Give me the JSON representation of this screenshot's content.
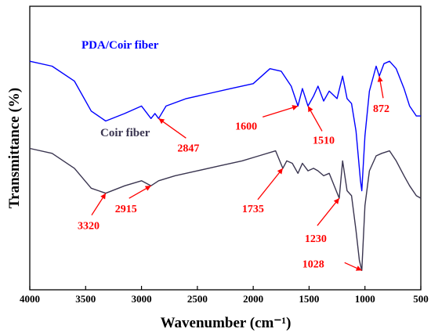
{
  "chart_data": {
    "type": "line",
    "title": "",
    "xlabel": "Wavenumber (cm⁻¹)",
    "ylabel": "Transmittance (%)",
    "xlim": [
      4000,
      500
    ],
    "x_reversed": true,
    "y_ticks_shown": false,
    "grid": false,
    "xticks": [
      4000,
      3500,
      3000,
      2500,
      2000,
      1500,
      1000,
      500
    ],
    "ylim": [
      0,
      100
    ],
    "series": [
      {
        "name": "PDA/Coir fiber",
        "color": "#0000ff",
        "points": [
          [
            4000,
            88
          ],
          [
            3800,
            86
          ],
          [
            3600,
            80
          ],
          [
            3450,
            68
          ],
          [
            3320,
            64
          ],
          [
            3150,
            67
          ],
          [
            3000,
            70
          ],
          [
            2915,
            65
          ],
          [
            2880,
            67
          ],
          [
            2847,
            65
          ],
          [
            2780,
            70
          ],
          [
            2600,
            73
          ],
          [
            2400,
            75
          ],
          [
            2200,
            77
          ],
          [
            2000,
            79
          ],
          [
            1850,
            85
          ],
          [
            1750,
            84
          ],
          [
            1660,
            78
          ],
          [
            1600,
            70
          ],
          [
            1560,
            77
          ],
          [
            1510,
            70
          ],
          [
            1460,
            74
          ],
          [
            1420,
            78
          ],
          [
            1370,
            72
          ],
          [
            1320,
            76
          ],
          [
            1250,
            73
          ],
          [
            1200,
            82
          ],
          [
            1160,
            73
          ],
          [
            1120,
            71
          ],
          [
            1080,
            60
          ],
          [
            1040,
            40
          ],
          [
            1028,
            36
          ],
          [
            1000,
            58
          ],
          [
            960,
            76
          ],
          [
            900,
            86
          ],
          [
            872,
            82
          ],
          [
            830,
            87
          ],
          [
            780,
            88
          ],
          [
            720,
            85
          ],
          [
            650,
            77
          ],
          [
            600,
            70
          ],
          [
            540,
            66
          ],
          [
            500,
            66
          ]
        ]
      },
      {
        "name": "Coir fiber",
        "color": "#3a3550",
        "points": [
          [
            4000,
            53
          ],
          [
            3800,
            51
          ],
          [
            3600,
            45
          ],
          [
            3450,
            37
          ],
          [
            3320,
            35
          ],
          [
            3150,
            38
          ],
          [
            3000,
            40
          ],
          [
            2915,
            38
          ],
          [
            2847,
            40
          ],
          [
            2700,
            42
          ],
          [
            2500,
            44
          ],
          [
            2300,
            46
          ],
          [
            2100,
            48
          ],
          [
            1950,
            50
          ],
          [
            1800,
            52
          ],
          [
            1735,
            45
          ],
          [
            1700,
            48
          ],
          [
            1650,
            47
          ],
          [
            1600,
            43
          ],
          [
            1560,
            47
          ],
          [
            1510,
            44
          ],
          [
            1460,
            45
          ],
          [
            1420,
            44
          ],
          [
            1370,
            42
          ],
          [
            1320,
            43
          ],
          [
            1230,
            33
          ],
          [
            1200,
            48
          ],
          [
            1160,
            36
          ],
          [
            1120,
            34
          ],
          [
            1080,
            20
          ],
          [
            1050,
            8
          ],
          [
            1028,
            4
          ],
          [
            1000,
            30
          ],
          [
            960,
            44
          ],
          [
            900,
            50
          ],
          [
            850,
            51
          ],
          [
            780,
            52
          ],
          [
            720,
            48
          ],
          [
            650,
            42
          ],
          [
            600,
            38
          ],
          [
            540,
            34
          ],
          [
            500,
            33
          ]
        ]
      }
    ],
    "annotations": [
      {
        "text": "2847",
        "x": 2847,
        "series": 0
      },
      {
        "text": "1600",
        "x": 1600,
        "series": 0
      },
      {
        "text": "1510",
        "x": 1510,
        "series": 0
      },
      {
        "text": "872",
        "x": 872,
        "series": 0
      },
      {
        "text": "3320",
        "x": 3320,
        "series": 1
      },
      {
        "text": "2915",
        "x": 2915,
        "series": 1
      },
      {
        "text": "1735",
        "x": 1735,
        "series": 1
      },
      {
        "text": "1230",
        "x": 1230,
        "series": 1
      },
      {
        "text": "1028",
        "x": 1028,
        "series": 1
      }
    ],
    "annotation_color": "#ff0000"
  }
}
